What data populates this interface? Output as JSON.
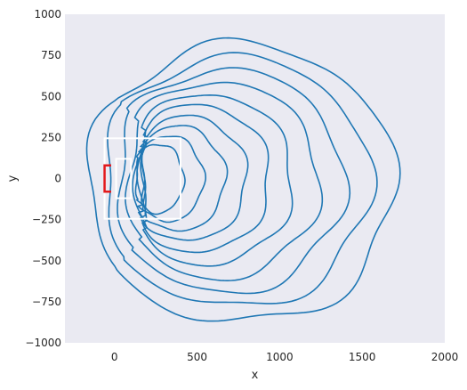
{
  "chart_data": {
    "type": "contour",
    "title": "",
    "xlabel": "x",
    "ylabel": "y",
    "xlim": [
      -300,
      2000
    ],
    "ylim": [
      -1000,
      1000
    ],
    "x_ticks": [
      0,
      500,
      1000,
      1500,
      2000
    ],
    "y_ticks": [
      -1000,
      -750,
      -500,
      -250,
      0,
      250,
      500,
      750,
      1000
    ],
    "grid": false,
    "legend": "none",
    "colors": {
      "background": "#eaeaf2",
      "contour": "#1f77b4",
      "outer_box": "#ffffff",
      "inner_box": "#ffffff",
      "red_bracket": "#e31a1c"
    },
    "contour_levels": [
      {
        "level": 1,
        "cx": 760,
        "cy": -30,
        "rx": 940,
        "ry": 850,
        "indent": 0.02
      },
      {
        "level": 2,
        "cx": 720,
        "cy": -20,
        "rx": 830,
        "ry": 760,
        "indent": 0.06
      },
      {
        "level": 3,
        "cx": 670,
        "cy": -15,
        "rx": 720,
        "ry": 680,
        "indent": 0.1
      },
      {
        "level": 4,
        "cx": 620,
        "cy": -10,
        "rx": 620,
        "ry": 600,
        "indent": 0.14
      },
      {
        "level": 5,
        "cx": 560,
        "cy": -5,
        "rx": 520,
        "ry": 520,
        "indent": 0.18
      },
      {
        "level": 6,
        "cx": 500,
        "cy": 0,
        "rx": 440,
        "ry": 450,
        "indent": 0.22
      },
      {
        "level": 7,
        "cx": 440,
        "cy": 0,
        "rx": 360,
        "ry": 380,
        "indent": 0.26
      },
      {
        "level": 8,
        "cx": 380,
        "cy": 0,
        "rx": 290,
        "ry": 320,
        "indent": 0.3
      },
      {
        "level": 9,
        "cx": 320,
        "cy": 0,
        "rx": 220,
        "ry": 260,
        "indent": 0.34
      },
      {
        "level": 10,
        "cx": 260,
        "cy": 0,
        "rx": 160,
        "ry": 210,
        "indent": 0.2
      }
    ],
    "rectangles": [
      {
        "name": "outer-box",
        "x0": -60,
        "x1": 400,
        "y0": -245,
        "y1": 245,
        "color": "#ffffff"
      },
      {
        "name": "inner-box",
        "x0": 10,
        "x1": 100,
        "y0": -120,
        "y1": 120,
        "color": "#ffffff"
      }
    ],
    "bracket": {
      "x0": -60,
      "x1": -20,
      "y0": -80,
      "y1": 80,
      "color": "#e31a1c"
    }
  }
}
